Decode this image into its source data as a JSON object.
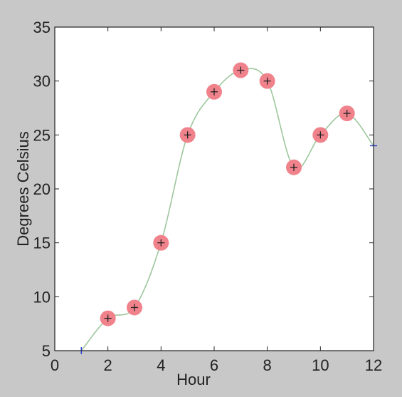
{
  "chart_data": {
    "type": "line",
    "xlabel": "Hour",
    "ylabel": "Degrees Celsius",
    "xlim": [
      0,
      12
    ],
    "ylim": [
      5,
      35
    ],
    "xticks": [
      0,
      2,
      4,
      6,
      8,
      10,
      12
    ],
    "yticks": [
      5,
      10,
      15,
      20,
      25,
      30,
      35
    ],
    "grid": false,
    "series": [
      {
        "x": [
          1,
          2,
          3,
          4,
          5,
          6,
          7,
          8,
          9,
          10,
          11,
          12
        ],
        "y": [
          5,
          8,
          9,
          15,
          25,
          29,
          31,
          30,
          22,
          25,
          27,
          24
        ]
      }
    ],
    "colors": {
      "curve": "#9ec79e",
      "marker_fill": "#f0828c",
      "marker_cross": "#222222",
      "endpoint_tick": "#2b3fd6",
      "plot_bg": "#ffffff",
      "figure_bg": "#c8c8c8"
    }
  }
}
